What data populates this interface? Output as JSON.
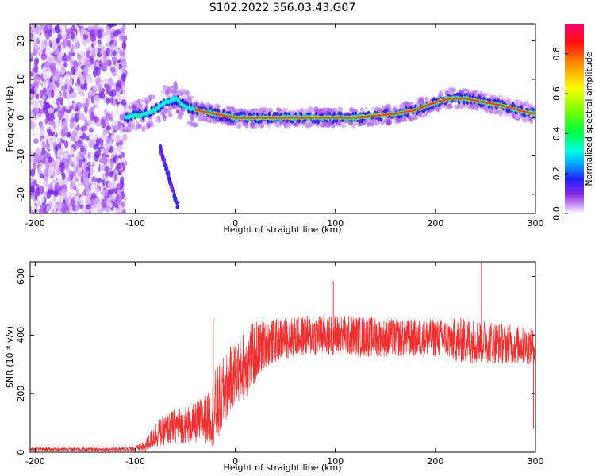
{
  "title": "S102.2022.356.03.43.G07",
  "chart_data": [
    {
      "type": "heatmap",
      "xlabel": "Height of straight line (km)",
      "ylabel": "Frequency (Hz)",
      "xlim": [
        -205,
        300
      ],
      "ylim": [
        -25,
        24.5
      ],
      "xticks": [
        "-200",
        "-100",
        "0",
        "100",
        "200",
        "300"
      ],
      "yticks": [
        "-20",
        "-10",
        "0",
        "10",
        "20"
      ],
      "colorbar": {
        "label": "Normalized spectral amplitude",
        "range": [
          0,
          0.95
        ],
        "ticks": [
          "0.0",
          "0.2",
          "0.4",
          "0.6",
          "0.8"
        ]
      },
      "ridge": {
        "x": [
          -110,
          -90,
          -80,
          -70,
          -60,
          -50,
          -40,
          -20,
          0,
          20,
          40,
          60,
          80,
          100,
          120,
          140,
          160,
          180,
          200,
          215,
          230,
          250,
          270,
          290,
          300
        ],
        "freq": [
          0,
          1,
          2,
          4,
          5,
          3,
          2,
          1,
          0,
          0,
          0,
          0,
          0,
          0,
          0,
          0.5,
          1,
          2,
          4,
          5,
          5,
          4,
          3,
          1.5,
          1
        ]
      },
      "branch": {
        "x": [
          -75,
          -70,
          -65,
          -60,
          -57
        ],
        "freq": [
          -8,
          -12,
          -17,
          -21,
          -24
        ]
      }
    },
    {
      "type": "line",
      "xlabel": "Height of straight line (km)",
      "ylabel": "SNR (10 * v/v)",
      "xlim": [
        -205,
        300
      ],
      "ylim": [
        0,
        650
      ],
      "xticks": [
        "-200",
        "-100",
        "0",
        "100",
        "200",
        "300"
      ],
      "yticks": [
        "0",
        "200",
        "400",
        "600"
      ],
      "color": "#f03030",
      "envelope": {
        "x": [
          -205,
          -120,
          -100,
          -90,
          -80,
          -60,
          -40,
          -25,
          -20,
          -5,
          0,
          10,
          20,
          30,
          50,
          80,
          100,
          130,
          160,
          200,
          230,
          250,
          270,
          300
        ],
        "mean": [
          10,
          10,
          12,
          20,
          60,
          90,
          100,
          120,
          140,
          250,
          270,
          300,
          340,
          370,
          390,
          400,
          400,
          395,
          390,
          390,
          380,
          380,
          370,
          360
        ],
        "amp": [
          6,
          6,
          8,
          20,
          45,
          60,
          70,
          90,
          140,
          110,
          110,
          120,
          110,
          80,
          70,
          70,
          70,
          70,
          65,
          65,
          80,
          75,
          70,
          60
        ]
      },
      "spikes": [
        {
          "x": 246,
          "y": 650
        },
        {
          "x": -22,
          "y": 455
        },
        {
          "x": 98,
          "y": 585
        },
        {
          "x": 298,
          "y": 80
        }
      ]
    }
  ]
}
